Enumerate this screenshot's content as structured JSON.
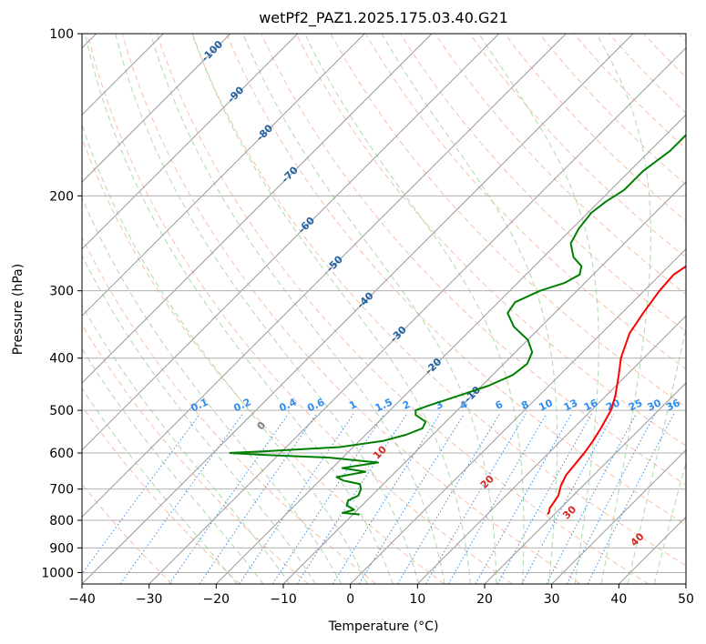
{
  "chart_data": {
    "type": "line",
    "subtype": "skew-t log-p diagram",
    "title": "wetPf2_PAZ1.2025.175.03.40.G21",
    "xlabel": "Temperature (°C)",
    "ylabel": "Pressure (hPa)",
    "xlim": [
      -40,
      50
    ],
    "ylim": [
      1050,
      100
    ],
    "y_scale": "log",
    "skew_degrees": 45,
    "grid": true,
    "x_ticks": [
      -40,
      -30,
      -20,
      -10,
      0,
      10,
      20,
      30,
      40,
      50
    ],
    "y_ticks": [
      100,
      200,
      300,
      400,
      500,
      600,
      700,
      800,
      900,
      1000
    ],
    "series": [
      {
        "color": "#ff0000",
        "points": [
          {
            "p": 780,
            "t": 19.0
          },
          {
            "p": 770,
            "t": 18.8
          },
          {
            "p": 760,
            "t": 18.4
          },
          {
            "p": 720,
            "t": 17.8
          },
          {
            "p": 690,
            "t": 16.7
          },
          {
            "p": 660,
            "t": 15.9
          },
          {
            "p": 630,
            "t": 15.6
          },
          {
            "p": 600,
            "t": 15.3
          },
          {
            "p": 570,
            "t": 14.8
          },
          {
            "p": 540,
            "t": 14.1
          },
          {
            "p": 500,
            "t": 12.9
          },
          {
            "p": 470,
            "t": 11.4
          },
          {
            "p": 430,
            "t": 8.8
          },
          {
            "p": 400,
            "t": 6.6
          },
          {
            "p": 360,
            "t": 4.2
          },
          {
            "p": 330,
            "t": 3.2
          },
          {
            "p": 300,
            "t": 2.3
          },
          {
            "p": 280,
            "t": 2.0
          },
          {
            "p": 265,
            "t": 2.9
          },
          {
            "p": 250,
            "t": 4.6
          },
          {
            "p": 230,
            "t": 6.5
          },
          {
            "p": 210,
            "t": 7.6
          },
          {
            "p": 195,
            "t": 7.5
          },
          {
            "p": 180,
            "t": 6.4
          },
          {
            "p": 165,
            "t": 5.5
          },
          {
            "p": 150,
            "t": 5.9
          },
          {
            "p": 135,
            "t": 7.0
          },
          {
            "p": 120,
            "t": 9.0
          },
          {
            "p": 110,
            "t": 11.0
          },
          {
            "p": 100,
            "t": 13.5
          }
        ]
      },
      {
        "color": "#008000",
        "points": [
          {
            "p": 780,
            "t": -9.0
          },
          {
            "p": 775,
            "t": -11.8
          },
          {
            "p": 765,
            "t": -10.5
          },
          {
            "p": 750,
            "t": -12.3
          },
          {
            "p": 735,
            "t": -12.8
          },
          {
            "p": 720,
            "t": -12.0
          },
          {
            "p": 700,
            "t": -12.6
          },
          {
            "p": 685,
            "t": -13.5
          },
          {
            "p": 675,
            "t": -16.5
          },
          {
            "p": 665,
            "t": -18.0
          },
          {
            "p": 650,
            "t": -14.5
          },
          {
            "p": 640,
            "t": -18.5
          },
          {
            "p": 625,
            "t": -14.0
          },
          {
            "p": 612,
            "t": -22.0
          },
          {
            "p": 605,
            "t": -32.0
          },
          {
            "p": 600,
            "t": -37.5
          },
          {
            "p": 595,
            "t": -32.0
          },
          {
            "p": 585,
            "t": -22.0
          },
          {
            "p": 570,
            "t": -16.5
          },
          {
            "p": 555,
            "t": -14.0
          },
          {
            "p": 540,
            "t": -12.5
          },
          {
            "p": 525,
            "t": -13.0
          },
          {
            "p": 510,
            "t": -15.5
          },
          {
            "p": 500,
            "t": -16.2
          },
          {
            "p": 490,
            "t": -15.0
          },
          {
            "p": 470,
            "t": -12.0
          },
          {
            "p": 450,
            "t": -9.0
          },
          {
            "p": 430,
            "t": -7.0
          },
          {
            "p": 410,
            "t": -6.5
          },
          {
            "p": 390,
            "t": -7.5
          },
          {
            "p": 370,
            "t": -10.0
          },
          {
            "p": 350,
            "t": -14.0
          },
          {
            "p": 330,
            "t": -17.0
          },
          {
            "p": 315,
            "t": -17.5
          },
          {
            "p": 300,
            "t": -15.5
          },
          {
            "p": 290,
            "t": -13.0
          },
          {
            "p": 280,
            "t": -12.0
          },
          {
            "p": 270,
            "t": -13.0
          },
          {
            "p": 260,
            "t": -15.5
          },
          {
            "p": 245,
            "t": -18.0
          },
          {
            "p": 230,
            "t": -19.0
          },
          {
            "p": 215,
            "t": -19.5
          },
          {
            "p": 205,
            "t": -19.0
          },
          {
            "p": 195,
            "t": -18.0
          },
          {
            "p": 180,
            "t": -18.0
          },
          {
            "p": 165,
            "t": -17.0
          },
          {
            "p": 150,
            "t": -17.0
          },
          {
            "p": 135,
            "t": -17.5
          },
          {
            "p": 120,
            "t": -18.0
          },
          {
            "p": 110,
            "t": -19.5
          },
          {
            "p": 100,
            "t": -21.0
          }
        ]
      }
    ],
    "isotherm_labels": [
      "-100",
      "-90",
      "-80",
      "-70",
      "-60",
      "-50",
      "-40",
      "-30",
      "-20",
      "-10"
    ],
    "mixing_ratio_labels": [
      "0.1",
      "0.2",
      "0.4",
      "0.6",
      "1",
      "1.5",
      "2",
      "3",
      "4",
      "6",
      "8",
      "10",
      "13",
      "16",
      "20",
      "25",
      "30",
      "36"
    ],
    "mixing_ratio_values": [
      0.1,
      0.2,
      0.4,
      0.6,
      1,
      1.5,
      2,
      3,
      4,
      6,
      8,
      10,
      13,
      16,
      20,
      25,
      30,
      36
    ],
    "moist_adiabat_labels": [
      "0",
      "10",
      "20",
      "30",
      "40"
    ],
    "moist_adiabat_values": [
      0,
      10,
      20,
      30,
      40
    ],
    "colors": {
      "temperature": "#ff0000",
      "dewpoint": "#008000",
      "isotherm": "#999999",
      "isotherm_label": "#1f5fa0",
      "dry_adiabat": "#f4a582",
      "moist_adiabat": "#98cf98",
      "mixing_ratio": "#3a8ee6",
      "mixing_label": "#2f8ef0",
      "wet_label_0": "#808080",
      "wet_label": "#d62728"
    }
  }
}
